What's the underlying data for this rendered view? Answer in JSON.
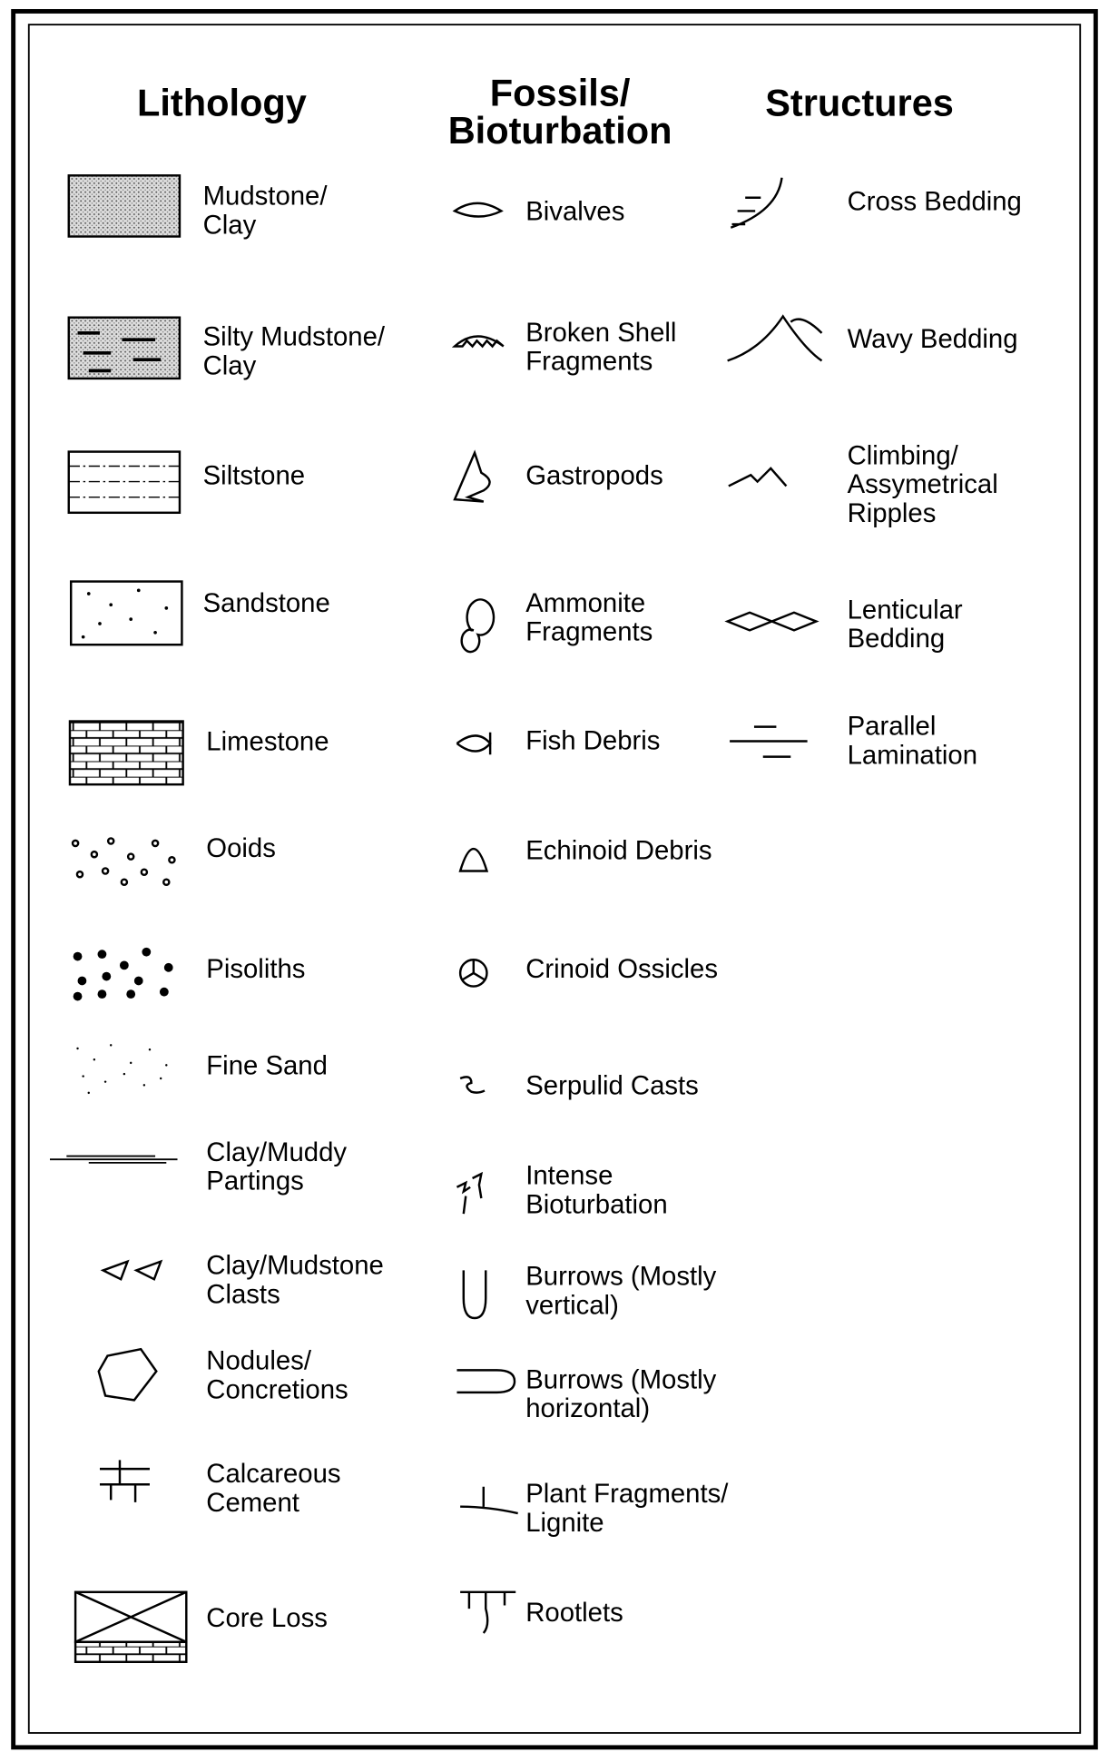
{
  "headers": {
    "lithology": "Lithology",
    "fossils": [
      "Fossils/",
      "Bioturbation"
    ],
    "structures": "Structures"
  },
  "lithology": [
    [
      "Mudstone/",
      "Clay"
    ],
    [
      "Silty Mudstone/",
      "Clay"
    ],
    [
      "Siltstone"
    ],
    [
      "Sandstone"
    ],
    [
      "Limestone"
    ],
    [
      "Ooids"
    ],
    [
      "Pisoliths"
    ],
    [
      "Fine Sand"
    ],
    [
      "Clay/Muddy",
      "Partings"
    ],
    [
      "Clay/Mudstone",
      "Clasts"
    ],
    [
      "Nodules/",
      "Concretions"
    ],
    [
      "Calcareous",
      "Cement"
    ],
    [
      "Core Loss"
    ]
  ],
  "fossils": [
    [
      "Bivalves"
    ],
    [
      "Broken Shell",
      "Fragments"
    ],
    [
      "Gastropods"
    ],
    [
      "Ammonite",
      "Fragments"
    ],
    [
      "Fish Debris"
    ],
    [
      "Echinoid Debris"
    ],
    [
      "Crinoid Ossicles"
    ],
    [
      "Serpulid Casts"
    ],
    [
      "Intense",
      "Bioturbation"
    ],
    [
      "Burrows (Mostly",
      "vertical)"
    ],
    [
      "Burrows (Mostly",
      "horizontal)"
    ],
    [
      "Plant Fragments/",
      "Lignite"
    ],
    [
      "Rootlets"
    ]
  ],
  "structures": [
    [
      "Cross Bedding"
    ],
    [
      "Wavy Bedding"
    ],
    [
      "Climbing/",
      "Assymetrical",
      "Ripples"
    ],
    [
      "Lenticular",
      "Bedding"
    ],
    [
      "Parallel",
      "Lamination"
    ]
  ]
}
